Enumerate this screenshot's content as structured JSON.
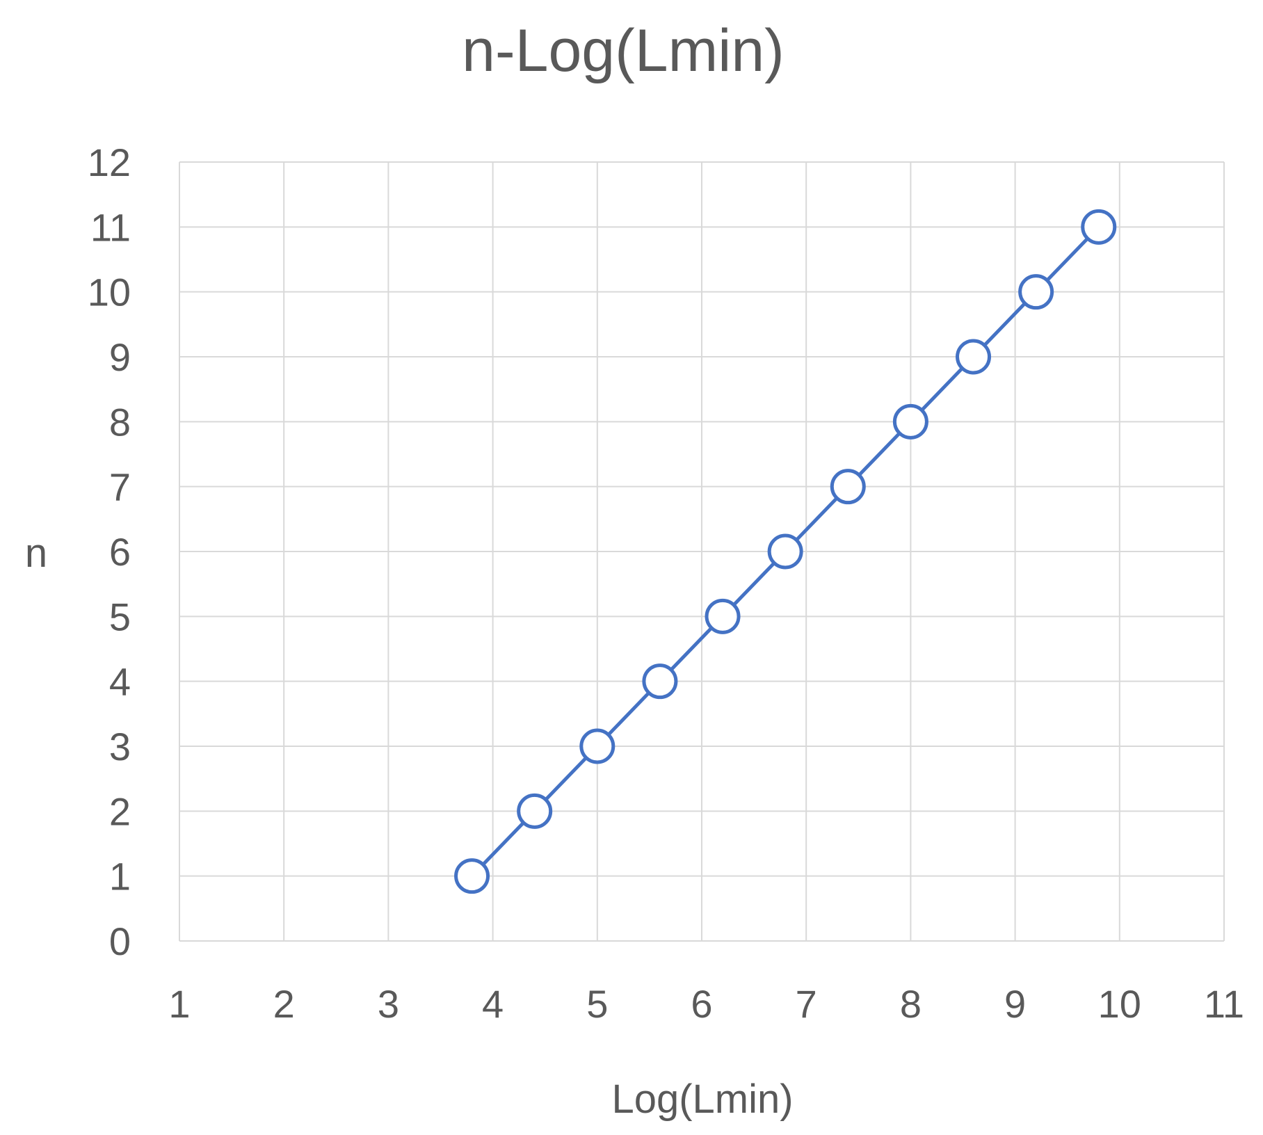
{
  "chart_data": {
    "type": "line",
    "title": "n-Log(Lmin)",
    "xlabel": "Log(Lmin)",
    "ylabel": "n",
    "xlim": [
      1,
      11
    ],
    "ylim": [
      0,
      12
    ],
    "x_ticks": [
      1,
      2,
      3,
      4,
      5,
      6,
      7,
      8,
      9,
      10,
      11
    ],
    "y_ticks": [
      0,
      1,
      2,
      3,
      4,
      5,
      6,
      7,
      8,
      9,
      10,
      11,
      12
    ],
    "grid": true,
    "legend": "none",
    "series": [
      {
        "x": [
          3.8,
          4.4,
          5.0,
          5.6,
          6.2,
          6.8,
          7.4,
          8.0,
          8.6,
          9.2,
          9.8
        ],
        "y": [
          1,
          2,
          3,
          4,
          5,
          6,
          7,
          8,
          9,
          10,
          11
        ],
        "marker": "open-circle",
        "color": "#4472C4"
      }
    ]
  },
  "colors": {
    "series": "#4472C4",
    "grid": "#d9d9d9",
    "text": "#595959",
    "marker_fill": "#ffffff"
  }
}
